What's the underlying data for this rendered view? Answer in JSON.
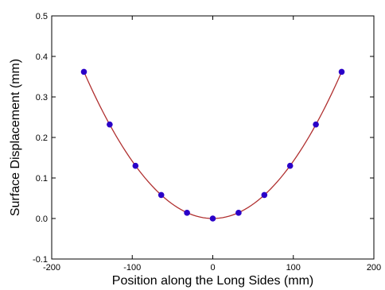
{
  "chart_data": {
    "type": "scatter",
    "xlabel": "Position along the Long Sides (mm)",
    "ylabel": "Surface Displacement (mm)",
    "xlim": [
      -200,
      200
    ],
    "ylim": [
      -0.1,
      0.5
    ],
    "x_ticks": [
      -200,
      -100,
      0,
      100,
      200
    ],
    "x_tick_labels": [
      "-200",
      "-100",
      "0",
      "100",
      "200"
    ],
    "y_ticks": [
      -0.1,
      0.0,
      0.1,
      0.2,
      0.3,
      0.4,
      0.5
    ],
    "y_tick_labels": [
      "-0.1",
      "0.0",
      "0.1",
      "0.2",
      "0.3",
      "0.4",
      "0.5"
    ],
    "grid": false,
    "series": [
      {
        "kind": "markers",
        "color": "#2a00c8",
        "x": [
          -160,
          -128,
          -96,
          -64,
          -32,
          0,
          32,
          64,
          96,
          128,
          160
        ],
        "y": [
          0.362,
          0.232,
          0.13,
          0.058,
          0.014,
          0.0,
          0.014,
          0.058,
          0.13,
          0.232,
          0.362
        ]
      },
      {
        "kind": "fit-curve",
        "color": "#b03030",
        "coefficient": 1.414e-05,
        "x_range": [
          -160,
          160
        ]
      }
    ]
  }
}
